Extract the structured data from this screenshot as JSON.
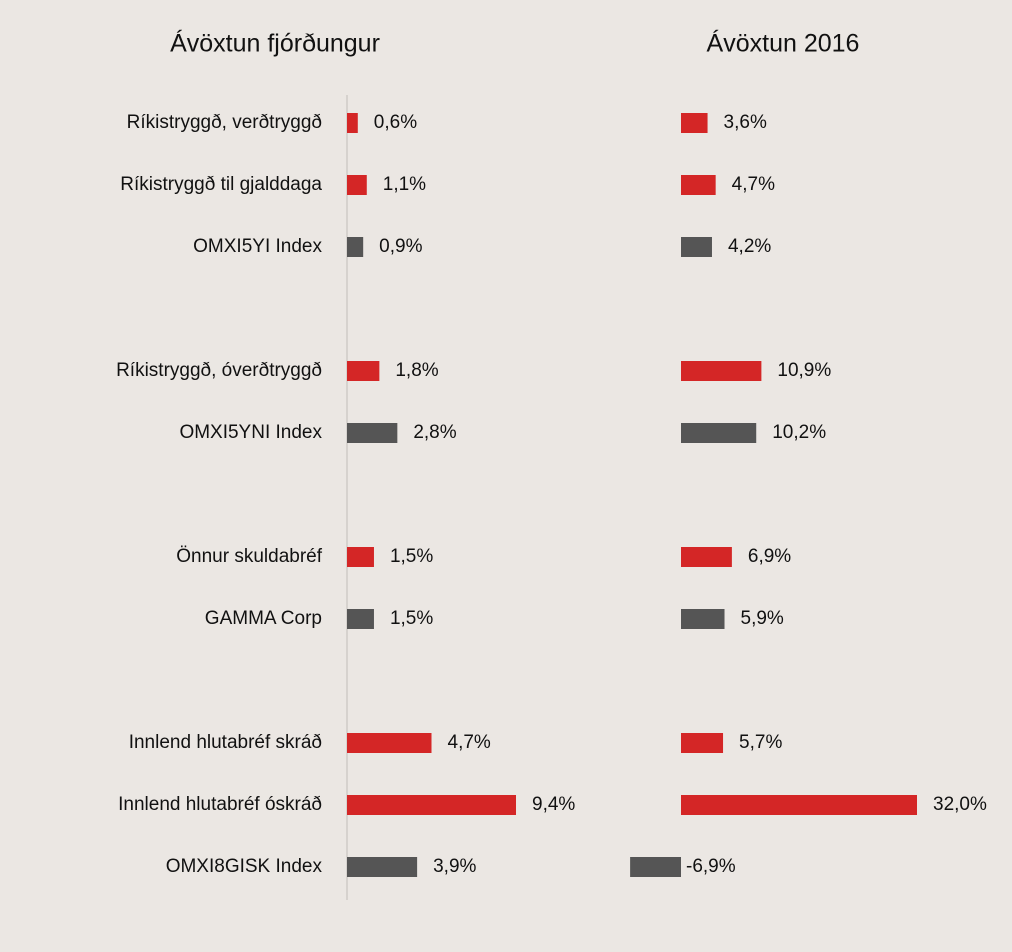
{
  "chart_data": [
    {
      "type": "hbar",
      "title": "Ávöxtun fjórðungur",
      "categories": [
        "Ríkistryggð, verðtryggð",
        "Ríkistryggð til gjalddaga",
        "OMXI5YI Index",
        null,
        "Ríkistryggð, óverðtryggð",
        "OMXI5YNI Index",
        null,
        "Önnur skuldabréf",
        "GAMMA Corp",
        null,
        "Innlend hlutabréf skráð",
        "Innlend hlutabréf óskráð",
        "OMXI8GISK Index"
      ],
      "values": [
        0.6,
        1.1,
        0.9,
        null,
        1.8,
        2.8,
        null,
        1.5,
        1.5,
        null,
        4.7,
        9.4,
        3.9
      ],
      "value_labels": [
        "0,6%",
        "1,1%",
        "0,9%",
        null,
        "1,8%",
        "2,8%",
        null,
        "1,5%",
        "1,5%",
        null,
        "4,7%",
        "9,4%",
        "3,9%"
      ],
      "colors": [
        "#d42626",
        "#d42626",
        "#555555",
        null,
        "#d42626",
        "#555555",
        null,
        "#d42626",
        "#555555",
        null,
        "#d42626",
        "#d42626",
        "#555555"
      ]
    },
    {
      "type": "hbar",
      "title": "Ávöxtun 2016",
      "values": [
        3.6,
        4.7,
        4.2,
        null,
        10.9,
        10.2,
        null,
        6.9,
        5.9,
        null,
        5.7,
        32.0,
        -6.9
      ],
      "value_labels": [
        "3,6%",
        "4,7%",
        "4,2%",
        null,
        "10,9%",
        "10,2%",
        null,
        "6,9%",
        "5,9%",
        null,
        "5,7%",
        "32,0%",
        "-6,9%"
      ],
      "colors": [
        "#d42626",
        "#d42626",
        "#555555",
        null,
        "#d42626",
        "#555555",
        null,
        "#d42626",
        "#555555",
        null,
        "#d42626",
        "#d42626",
        "#555555"
      ]
    }
  ]
}
